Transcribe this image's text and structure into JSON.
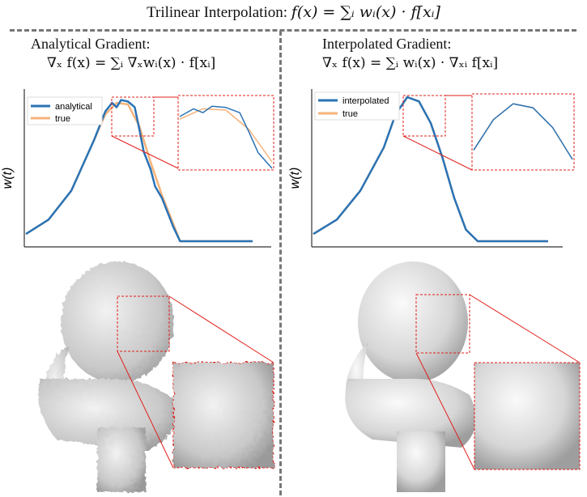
{
  "figure": {
    "title_prefix": "Trilinear Interpolation:",
    "title_formula": "f(x) = ∑ᵢ wᵢ(x) · f[xᵢ]"
  },
  "left": {
    "heading": "Analytical Gradient:",
    "formula": "∇ₓ f(x) = ∑ᵢ ∇ₓwᵢ(x) · f[xᵢ]",
    "ylabel": "w(t)",
    "legend": [
      "analytical",
      "true"
    ]
  },
  "right": {
    "heading": "Interpolated Gradient:",
    "formula": "∇ₓ f(x) = ∑ᵢ wᵢ(x) · ∇ₓᵢ f[xᵢ]",
    "ylabel": "w(t)",
    "legend": [
      "interpolated",
      "true"
    ]
  },
  "colors": {
    "series_main": "#2a73b5",
    "series_true": "#f5b37a",
    "zoom_box": "#e0201b",
    "divider": "#777777",
    "render_surface": "#d9d9d9"
  },
  "chart_data": [
    {
      "type": "line",
      "ylabel": "w(t)",
      "xlabel": "",
      "series": [
        {
          "name": "analytical",
          "x": [
            0,
            0.1,
            0.2,
            0.3,
            0.35,
            0.38,
            0.4,
            0.42,
            0.45,
            0.48,
            0.5,
            0.52,
            0.55,
            0.57,
            0.6,
            0.62,
            0.65,
            0.68,
            0.7,
            0.72,
            1.0
          ],
          "y": [
            0.05,
            0.15,
            0.35,
            0.7,
            0.9,
            0.96,
            0.93,
            0.98,
            0.97,
            0.93,
            0.78,
            0.62,
            0.5,
            0.38,
            0.3,
            0.22,
            0.1,
            0.0,
            0.0,
            0.0,
            0.0
          ]
        },
        {
          "name": "true",
          "x": [
            0,
            0.1,
            0.2,
            0.3,
            0.35,
            0.4,
            0.45,
            0.5,
            0.55,
            0.6,
            0.65,
            0.68,
            0.7,
            1.0
          ],
          "y": [
            0.05,
            0.15,
            0.35,
            0.7,
            0.88,
            0.96,
            0.95,
            0.8,
            0.55,
            0.32,
            0.12,
            0.0,
            0.0,
            0.0
          ]
        }
      ]
    },
    {
      "type": "line",
      "ylabel": "w(t)",
      "xlabel": "",
      "series": [
        {
          "name": "interpolated",
          "x": [
            0,
            0.1,
            0.2,
            0.3,
            0.35,
            0.4,
            0.45,
            0.5,
            0.55,
            0.6,
            0.65,
            0.7,
            1.0
          ],
          "y": [
            0.05,
            0.15,
            0.35,
            0.65,
            0.88,
            1.0,
            0.97,
            0.82,
            0.58,
            0.3,
            0.08,
            0.0,
            0.0
          ]
        },
        {
          "name": "true",
          "x": [
            0,
            0.1,
            0.2,
            0.3,
            0.35,
            0.4,
            0.45,
            0.5,
            0.55,
            0.6,
            0.65,
            0.7,
            1.0
          ],
          "y": [
            0.05,
            0.15,
            0.35,
            0.65,
            0.88,
            1.0,
            0.97,
            0.82,
            0.58,
            0.3,
            0.08,
            0.0,
            0.0
          ]
        }
      ]
    }
  ]
}
